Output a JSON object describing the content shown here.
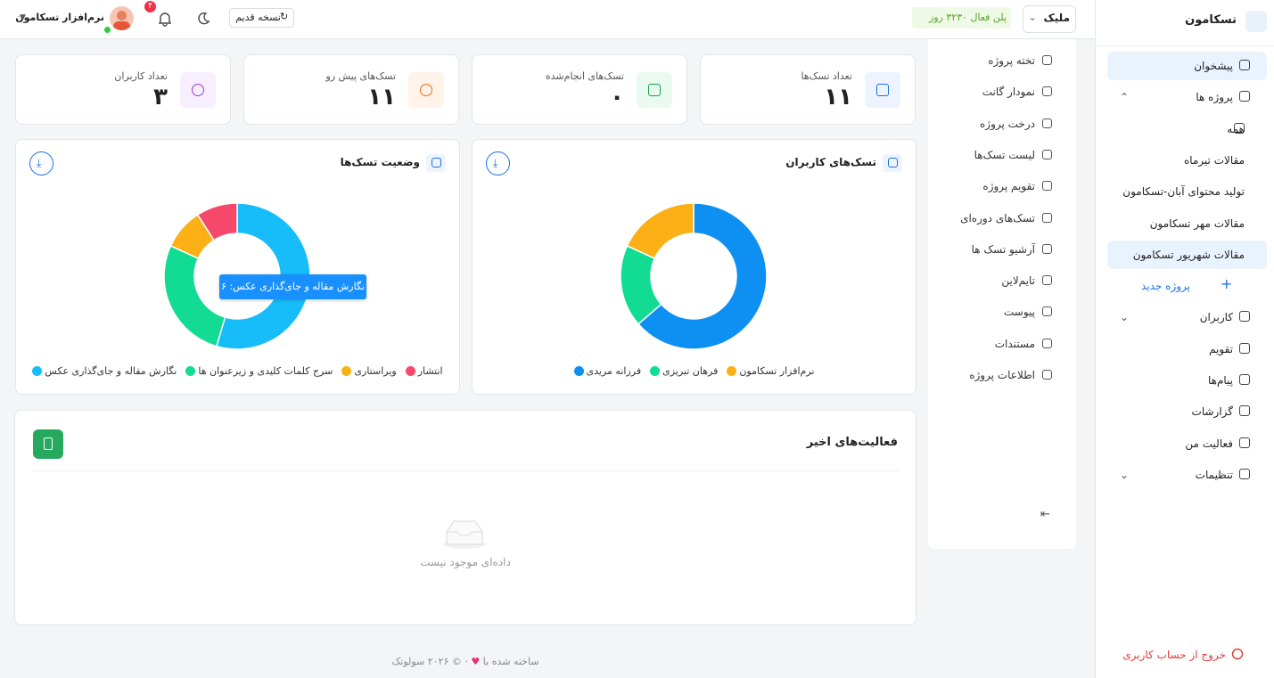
{
  "header": {
    "workspace": "ملیک",
    "plan": "پلن فعال ۳۲۳۰ روز",
    "old_version": "نسخه قدیم",
    "notifications": "۴",
    "user": "نرم‌افزار تسکامون"
  },
  "sidebar": {
    "brand": "تسکامون",
    "items": [
      "پیشخوان",
      "پروژه ها",
      "همه",
      "مقالات تیرماه",
      "تولید محتوای آبان-تسکامون",
      "مقالات مهر تسکامون",
      "مقالات شهریور تسکامون",
      "پروژه جدید",
      "کاربران",
      "تقویم",
      "پیام‌ها",
      "گزارشات",
      "فعالیت من",
      "تنظیمات"
    ],
    "logout": "خروج از حساب کاربری"
  },
  "project_menu": [
    "تخته پروژه",
    "نمودار گانت",
    "درخت پروژه",
    "لیست تسک‌ها",
    "تقویم پروژه",
    "تسک‌های دوره‌ای",
    "آرشیو تسک ها",
    "تایم‌لاین",
    "پیوست",
    "مستندات",
    "اطلاعات پروژه"
  ],
  "stats": [
    {
      "label": "تعداد تسک‌ها",
      "value": "۱۱"
    },
    {
      "label": "تسک‌های انجام‌شده",
      "value": "۰"
    },
    {
      "label": "تسک‌های پیش رو",
      "value": "۱۱"
    },
    {
      "label": "تعداد کاربران",
      "value": "۳"
    }
  ],
  "chart_data": [
    {
      "type": "donut",
      "title": "تسک‌های کاربران",
      "categories": [
        "فرزانه مریدی",
        "فرهان تبریزی",
        "نرم‌افزار تسکامون"
      ],
      "values": [
        7,
        2,
        2
      ],
      "colors": [
        "#0d90f2",
        "#12dc93",
        "#fbb116"
      ]
    },
    {
      "type": "donut",
      "title": "وضعیت تسک‌ها",
      "categories": [
        "نگارش مقاله و جای‌گذاری عکس",
        "سرج کلمات کلیدی و زیرعنوان ها",
        "ویراستاری",
        "انتشار"
      ],
      "values": [
        6,
        3,
        1,
        1
      ],
      "colors": [
        "#17bdf8",
        "#12dc93",
        "#fbb116",
        "#f6486a"
      ],
      "tooltip": "نگارش مقاله و جای‌گذاری عکس: ۶"
    }
  ],
  "activity": {
    "title": "فعالیت‌های اخیر",
    "empty": "داده‌ای موجود نیست"
  },
  "footer": {
    "before": "ساخته شده با",
    "after": "· © ۲۰۲۶ سولوتک"
  }
}
